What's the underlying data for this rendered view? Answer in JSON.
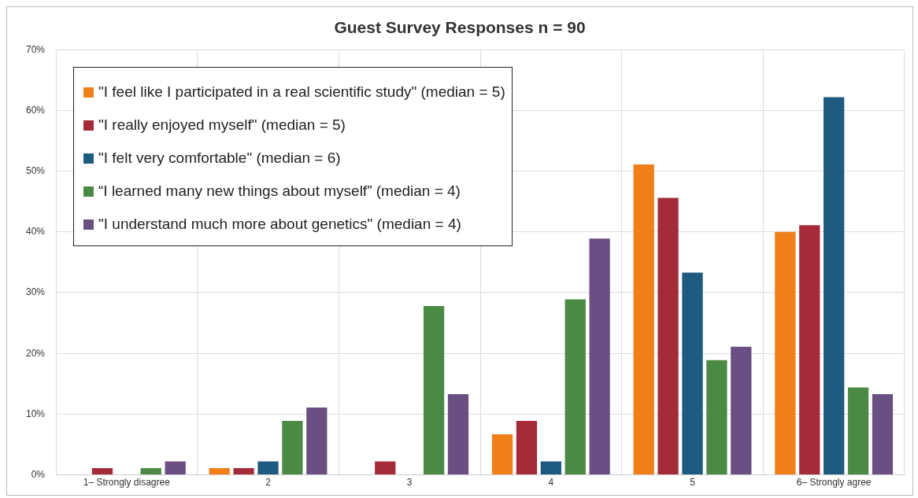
{
  "chart_data": {
    "type": "bar",
    "title": "Guest Survey Responses n = 90",
    "categories": [
      "1– Strongly disagree",
      "2",
      "3",
      "4",
      "5",
      "6– Strongly agree"
    ],
    "series": [
      {
        "name": "\"I feel like I participated in a real scientific study\" (median = 5)",
        "color": "#f07f1a",
        "values": [
          0,
          1.1,
          0,
          6.7,
          51.1,
          40
        ]
      },
      {
        "name": "\"I really enjoyed myself\" (median = 5)",
        "color": "#a52a3a",
        "values": [
          1.1,
          1.1,
          2.2,
          8.9,
          45.6,
          41.1
        ]
      },
      {
        "name": "\"I felt very comfortable\" (median = 6)",
        "color": "#1f5a80",
        "values": [
          0,
          2.2,
          0,
          2.2,
          33.3,
          62.2
        ]
      },
      {
        "name": "“I learned many new things about myself” (median = 4)",
        "color": "#4a8a45",
        "values": [
          1.1,
          8.9,
          27.8,
          28.9,
          18.9,
          14.4
        ]
      },
      {
        "name": "\"I understand much more about genetics\" (median = 4)",
        "color": "#6a4f82",
        "values": [
          2.2,
          11.1,
          13.3,
          38.9,
          21.1,
          13.3
        ]
      }
    ],
    "ylim": [
      0,
      70
    ],
    "yticks": [
      {
        "value": 0,
        "label": "0%"
      },
      {
        "value": 10,
        "label": "10%"
      },
      {
        "value": 20,
        "label": "20%"
      },
      {
        "value": 30,
        "label": "30%"
      },
      {
        "value": 40,
        "label": "40%"
      },
      {
        "value": 50,
        "label": "50%"
      },
      {
        "value": 60,
        "label": "60%"
      },
      {
        "value": 70,
        "label": "70%"
      }
    ],
    "grid": true,
    "legend": "top left"
  }
}
